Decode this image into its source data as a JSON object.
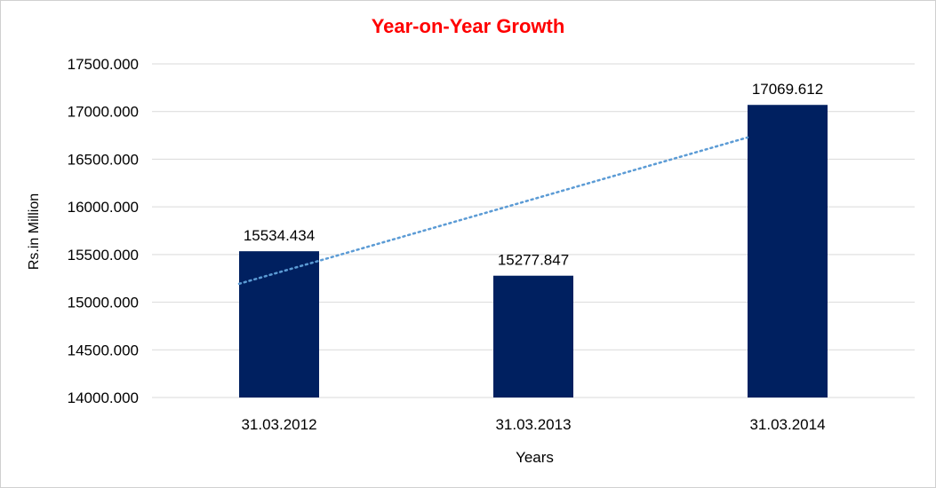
{
  "chart_data": {
    "type": "bar",
    "title": "Year-on-Year Growth",
    "xlabel": "Years",
    "ylabel": "Rs.in Million",
    "categories": [
      "31.03.2012",
      "31.03.2013",
      "31.03.2014"
    ],
    "values": [
      15534.434,
      15277.847,
      17069.612
    ],
    "data_labels": [
      "15534.434",
      "15277.847",
      "17069.612"
    ],
    "ylim": [
      14000,
      17500
    ],
    "y_ticks": [
      {
        "value": 14000,
        "label": "14000.000"
      },
      {
        "value": 14500,
        "label": "14500.000"
      },
      {
        "value": 15000,
        "label": "15000.000"
      },
      {
        "value": 15500,
        "label": "15500.000"
      },
      {
        "value": 16000,
        "label": "16000.000"
      },
      {
        "value": 16500,
        "label": "16500.000"
      },
      {
        "value": 17000,
        "label": "17000.000"
      },
      {
        "value": 17500,
        "label": "17500.000"
      }
    ],
    "trendline": {
      "type": "linear",
      "style": "dotted",
      "color": "#5b9bd5"
    },
    "grid": true,
    "legend": "none",
    "colors": {
      "bar": "#002060",
      "title": "#ff0000",
      "grid": "#d9d9d9"
    }
  }
}
